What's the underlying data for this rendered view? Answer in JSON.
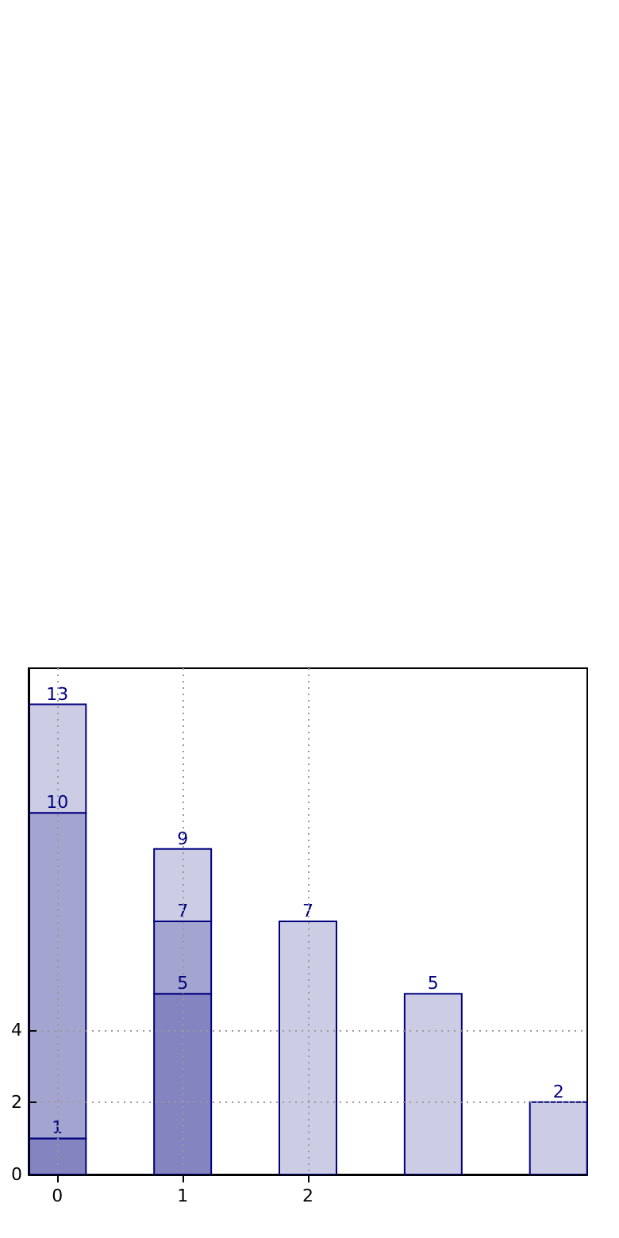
{
  "chart_data": {
    "type": "bar",
    "stacked": true,
    "x": [
      0,
      1,
      2,
      3,
      4
    ],
    "xlim": [
      -0.23,
      4.23
    ],
    "xticks": [
      0,
      1,
      2
    ],
    "ylim": [
      0,
      14
    ],
    "yticks": [
      0,
      2,
      4
    ],
    "grid": true,
    "series": [
      {
        "color": "#8484c0",
        "values": [
          1,
          5,
          null,
          null,
          null
        ],
        "value_labels": [
          "1",
          "5",
          null,
          null,
          null
        ]
      },
      {
        "color": "#a4a4d0",
        "values": [
          9,
          2,
          null,
          null,
          null
        ]
      },
      {
        "color": "#cccce4",
        "values": [
          3,
          2,
          7,
          5,
          2
        ]
      }
    ],
    "totals": [
      "13",
      "9",
      "7",
      "5",
      "2"
    ],
    "annotations": [
      {
        "text": "10",
        "x": 0,
        "y": 10
      },
      {
        "text": "7",
        "x": 1,
        "y": 7
      }
    ]
  }
}
